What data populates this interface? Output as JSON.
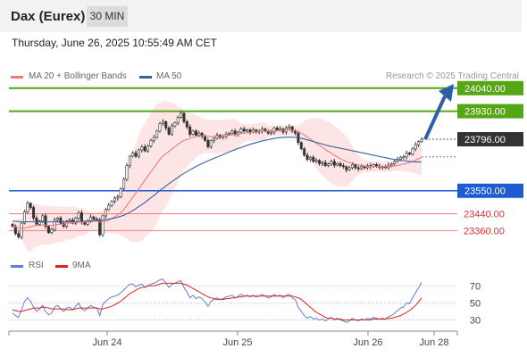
{
  "header": {
    "instrument": "Dax (Eurex)",
    "interval": "30 MIN"
  },
  "timestamp": "Thursday, June 26, 2025 10:55:49 AM CET",
  "legend": {
    "ma20": "MA 20 + Bollinger Bands",
    "ma50": "MA 50",
    "credit": "Research © 2025 Trading Central",
    "rsi": "RSI",
    "ma9": "9MA"
  },
  "colors": {
    "candle": "#333333",
    "ma20": "#ee7c7c",
    "ma50": "#3d5f9c",
    "bollinger_fill": "#fde0e0",
    "resistance": "#55a614",
    "support": "#1e5bd0",
    "target": "#f07b7b",
    "arrow": "#2b5fa8",
    "last_price": "#333333",
    "rsi": "#5b7fd6",
    "ma9": "#dd2222"
  },
  "chart_data": [
    {
      "type": "candlestick",
      "x_labels": [
        "Jun 24",
        "Jun 25",
        "Jun 26",
        "Jun 28"
      ],
      "ylim": [
        23225,
        24120
      ],
      "levels": [
        {
          "label": "24040.00",
          "value": 24040,
          "kind": "resistance"
        },
        {
          "label": "23930.00",
          "value": 23930,
          "kind": "resistance"
        },
        {
          "label": "23796.00",
          "value": 23796,
          "kind": "last"
        },
        {
          "label": "23550.00",
          "value": 23550,
          "kind": "support"
        },
        {
          "label": "23440.00",
          "value": 23440,
          "kind": "target"
        },
        {
          "label": "23360.00",
          "value": 23360,
          "kind": "target"
        }
      ],
      "close": [
        23380,
        23345,
        23330,
        23395,
        23450,
        23490,
        23470,
        23420,
        23390,
        23405,
        23430,
        23380,
        23350,
        23365,
        23410,
        23420,
        23395,
        23380,
        23405,
        23410,
        23395,
        23420,
        23445,
        23400,
        23390,
        23405,
        23425,
        23415,
        23410,
        23340,
        23430,
        23460,
        23480,
        23500,
        23515,
        23520,
        23560,
        23605,
        23670,
        23715,
        23730,
        23715,
        23745,
        23760,
        23740,
        23765,
        23790,
        23805,
        23835,
        23870,
        23880,
        23850,
        23820,
        23860,
        23875,
        23900,
        23920,
        23880,
        23855,
        23820,
        23835,
        23815,
        23825,
        23810,
        23790,
        23760,
        23790,
        23800,
        23815,
        23805,
        23810,
        23820,
        23825,
        23835,
        23820,
        23830,
        23845,
        23835,
        23840,
        23830,
        23840,
        23830,
        23835,
        23845,
        23835,
        23825,
        23830,
        23850,
        23840,
        23845,
        23830,
        23850,
        23855,
        23835,
        23825,
        23780,
        23750,
        23720,
        23700,
        23710,
        23690,
        23695,
        23680,
        23685,
        23670,
        23678,
        23690,
        23672,
        23680,
        23670,
        23665,
        23650,
        23660,
        23675,
        23660,
        23655,
        23665,
        23660,
        23670,
        23665,
        23675,
        23668,
        23662,
        23665,
        23660,
        23672,
        23678,
        23690,
        23700,
        23710,
        23712,
        23730,
        23725,
        23750,
        23770,
        23785,
        23796
      ],
      "ma20": [
        23380,
        23376,
        23372,
        23370,
        23372,
        23375,
        23378,
        23382,
        23384,
        23385,
        23386,
        23386,
        23385,
        23385,
        23387,
        23389,
        23389,
        23391,
        23394,
        23396,
        23397,
        23398,
        23400,
        23400,
        23401,
        23402,
        23403,
        23404,
        23405,
        23400,
        23402,
        23405,
        23410,
        23418,
        23426,
        23435,
        23445,
        23460,
        23480,
        23500,
        23520,
        23540,
        23560,
        23580,
        23600,
        23620,
        23640,
        23660,
        23680,
        23700,
        23715,
        23728,
        23738,
        23750,
        23760,
        23772,
        23782,
        23790,
        23795,
        23800,
        23805,
        23810,
        23812,
        23813,
        23812,
        23810,
        23809,
        23808,
        23809,
        23809,
        23810,
        23812,
        23815,
        23818,
        23818,
        23820,
        23823,
        23825,
        23827,
        23828,
        23830,
        23830,
        23832,
        23834,
        23834,
        23834,
        23835,
        23836,
        23837,
        23838,
        23838,
        23839,
        23840,
        23839,
        23837,
        23832,
        23825,
        23816,
        23806,
        23797,
        23787,
        23777,
        23767,
        23757,
        23747,
        23738,
        23729,
        23720,
        23711,
        23703,
        23696,
        23690,
        23685,
        23681,
        23677,
        23673,
        23670,
        23668,
        23667,
        23666,
        23666,
        23666,
        23665,
        23665,
        23665,
        23666,
        23667,
        23669,
        23671,
        23674,
        23677,
        23681,
        23685,
        23690,
        23696,
        23703,
        23710
      ],
      "ma50": [
        23405,
        23404,
        23403,
        23402,
        23402,
        23402,
        23402,
        23402,
        23402,
        23402,
        23402,
        23402,
        23402,
        23402,
        23402,
        23402,
        23402,
        23402,
        23402,
        23402,
        23402,
        23403,
        23404,
        23404,
        23405,
        23406,
        23407,
        23408,
        23409,
        23409,
        23410,
        23412,
        23414,
        23417,
        23420,
        23424,
        23428,
        23433,
        23440,
        23448,
        23456,
        23465,
        23474,
        23484,
        23494,
        23505,
        23516,
        23527,
        23539,
        23551,
        23562,
        23573,
        23584,
        23594,
        23604,
        23614,
        23624,
        23633,
        23642,
        23650,
        23658,
        23666,
        23673,
        23680,
        23687,
        23693,
        23699,
        23705,
        23711,
        23717,
        23723,
        23729,
        23735,
        23741,
        23746,
        23752,
        23757,
        23762,
        23767,
        23772,
        23776,
        23780,
        23784,
        23788,
        23791,
        23794,
        23797,
        23800,
        23802,
        23804,
        23805,
        23806,
        23806,
        23806,
        23805,
        23803,
        23800,
        23797,
        23793,
        23789,
        23785,
        23781,
        23777,
        23773,
        23769,
        23765,
        23762,
        23759,
        23756,
        23753,
        23750,
        23747,
        23744,
        23741,
        23738,
        23735,
        23732,
        23729,
        23726,
        23723,
        23720,
        23717,
        23714,
        23711,
        23708,
        23705,
        23702,
        23700,
        23698,
        23696,
        23694,
        23692,
        23690,
        23689,
        23688,
        23688,
        23688
      ]
    },
    {
      "type": "line",
      "ylim": [
        20,
        85
      ],
      "y_ticks": [
        70,
        50,
        30
      ],
      "series": [
        {
          "name": "RSI",
          "values": [
            38,
            35,
            33,
            42,
            52,
            56,
            52,
            45,
            40,
            43,
            47,
            40,
            36,
            38,
            45,
            47,
            43,
            40,
            44,
            45,
            42,
            46,
            50,
            43,
            41,
            44,
            47,
            45,
            44,
            35,
            48,
            52,
            55,
            57,
            58,
            59,
            62,
            65,
            69,
            72,
            72,
            69,
            71,
            72,
            68,
            70,
            72,
            73,
            75,
            77,
            78,
            73,
            68,
            72,
            73,
            75,
            76,
            68,
            63,
            56,
            59,
            55,
            57,
            55,
            51,
            46,
            52,
            54,
            56,
            54,
            55,
            57,
            58,
            59,
            56,
            58,
            60,
            58,
            59,
            57,
            59,
            57,
            58,
            60,
            58,
            56,
            57,
            60,
            58,
            59,
            56,
            59,
            60,
            56,
            54,
            45,
            40,
            35,
            32,
            34,
            31,
            32,
            30,
            31,
            29,
            31,
            33,
            30,
            32,
            30,
            29,
            27,
            29,
            32,
            30,
            29,
            31,
            30,
            32,
            31,
            33,
            32,
            31,
            32,
            31,
            34,
            35,
            38,
            41,
            44,
            45,
            50,
            49,
            56,
            62,
            68,
            74
          ]
        },
        {
          "name": "9MA",
          "values": [
            42,
            41,
            40,
            40,
            41,
            42,
            43,
            44,
            44,
            44,
            45,
            45,
            44,
            43,
            43,
            43,
            43,
            43,
            42,
            42,
            42,
            43,
            44,
            44,
            44,
            44,
            44,
            44,
            44,
            43,
            43,
            44,
            45,
            46,
            48,
            50,
            52,
            55,
            58,
            61,
            63,
            65,
            67,
            68,
            69,
            70,
            70,
            70,
            71,
            72,
            73,
            73,
            73,
            73,
            73,
            73,
            73,
            72,
            71,
            69,
            67,
            65,
            63,
            61,
            59,
            57,
            56,
            55,
            54,
            54,
            54,
            55,
            55,
            56,
            56,
            57,
            57,
            58,
            58,
            58,
            58,
            58,
            58,
            58,
            58,
            58,
            58,
            58,
            58,
            58,
            58,
            58,
            58,
            58,
            57,
            56,
            54,
            51,
            48,
            45,
            42,
            39,
            37,
            35,
            33,
            32,
            32,
            31,
            31,
            31,
            30,
            30,
            30,
            30,
            30,
            30,
            30,
            30,
            30,
            30,
            31,
            31,
            31,
            31,
            31,
            32,
            32,
            33,
            34,
            35,
            37,
            39,
            41,
            44,
            47,
            51,
            56
          ]
        }
      ]
    }
  ]
}
